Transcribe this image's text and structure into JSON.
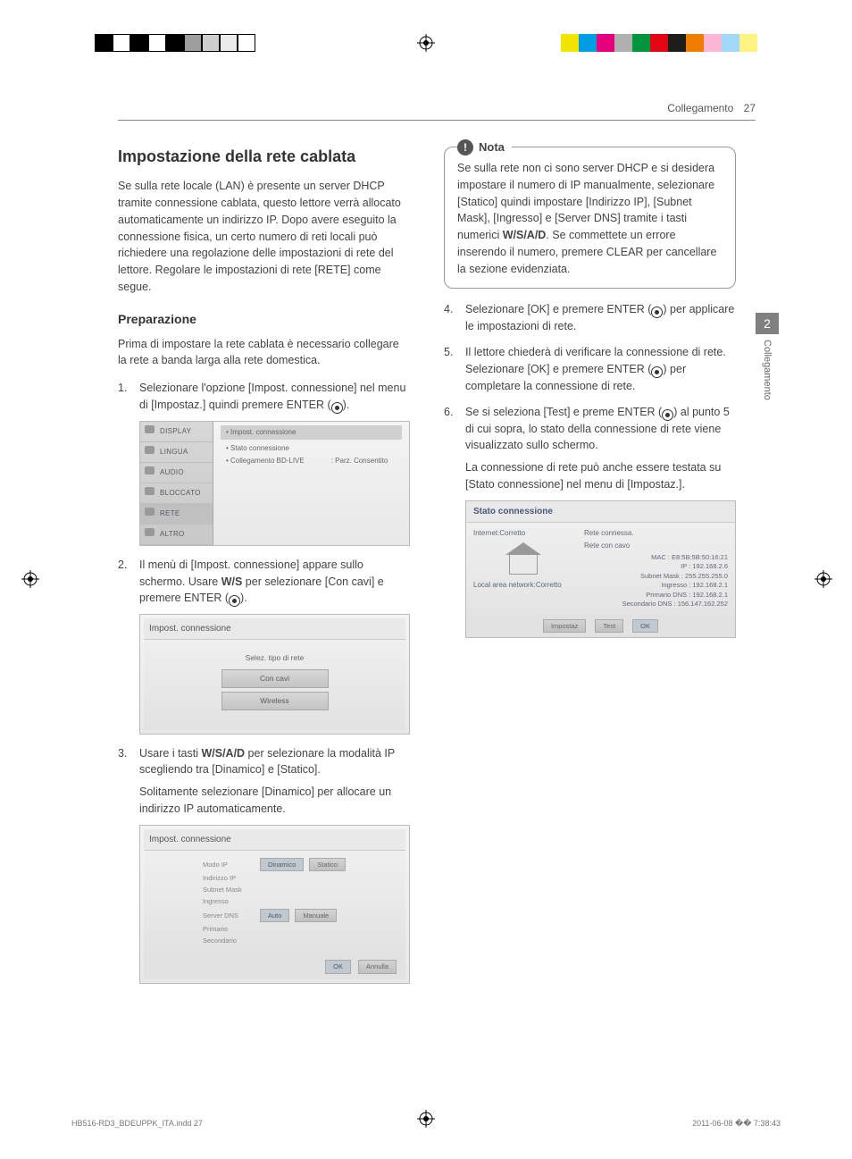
{
  "print_marks": {
    "left_bars": [
      "#000000",
      "#ffffff",
      "#000000",
      "#ffffff",
      "#000000",
      "#9e9e9e",
      "#cfcfcf",
      "#ebebeb",
      "#ffffff"
    ],
    "right_bars": [
      "#ffffff",
      "#f2e600",
      "#009fe3",
      "#e6007e",
      "#b0b0b0",
      "#009640",
      "#e30613",
      "#1d1d1b",
      "#ef7d00",
      "#fab8d5",
      "#a1daf8",
      "#fff482"
    ]
  },
  "header": {
    "section": "Collegamento",
    "page": "27"
  },
  "side_tab": {
    "num": "2",
    "label": "Collegamento"
  },
  "col_left": {
    "h2": "Impostazione della rete cablata",
    "intro": "Se sulla rete locale (LAN) è presente un server DHCP tramite connessione cablata, questo lettore verrà allocato automaticamente un indirizzo IP. Dopo avere eseguito la connessione fisica, un certo numero di reti locali può richiedere una regolazione delle impostazioni di rete del lettore. Regolare le impostazioni di rete [RETE] come segue.",
    "h3": "Preparazione",
    "prep_para": "Prima di impostare la rete cablata è necessario collegare la rete a banda larga alla rete domestica.",
    "step1_a": "Selezionare l'opzione [Impost. connessione] nel menu di [Impostaz.] quindi premere ENTER (",
    "step1_b": ").",
    "step2_a": "Il menù di [Impost. connessione] appare sullo schermo. Usare ",
    "step2_arrows": "W/S",
    "step2_b": " per selezionare [Con cavi] e premere ENTER (",
    "step2_c": ").",
    "step3_a": "Usare i tasti ",
    "step3_arrows": "W/S/A/D",
    "step3_b": " per selezionare la modalità IP scegliendo tra [Dinamico] e [Statico].",
    "step3_para2": "Solitamente selezionare [Dinamico] per allocare un indirizzo IP automaticamente.",
    "ui_menu": {
      "items": [
        "DISPLAY",
        "LINGUA",
        "AUDIO",
        "BLOCCATO",
        "RETE",
        "ALTRO"
      ],
      "hdr": "• Impost. connessione",
      "r1": "• Stato connessione",
      "r2a": "• Collegamento BD-LIVE",
      "r2b": ": Parz. Consentito"
    },
    "ui_dialog1": {
      "title": "Impost. connessione",
      "cap": "Selez. tipo di rete",
      "opt1": "Con cavi",
      "opt2": "Wireless"
    },
    "ui_dialog2": {
      "title": "Impost. connessione",
      "rows": [
        {
          "lab": "Modo IP",
          "a": "Dinamico",
          "b": "Statico"
        },
        {
          "lab": "Indirizzo IP"
        },
        {
          "lab": "Subnet Mask"
        },
        {
          "lab": "Ingresso"
        },
        {
          "lab": "Server DNS",
          "a": "Auto",
          "b": "Manuale"
        },
        {
          "lab": "Primario"
        },
        {
          "lab": "Secondario"
        }
      ],
      "ok": "OK",
      "cancel": "Annulla"
    }
  },
  "col_right": {
    "note_label": "Nota",
    "note_body_a": "Se sulla rete non ci sono server DHCP e si desidera impostare il numero di IP manualmente, selezionare [Statico] quindi impostare [Indirizzo IP], [Subnet Mask], [Ingresso] e [Server DNS] tramite i tasti numerici ",
    "note_arrows": "W/S/A/D",
    "note_body_b": ". Se commettete un errore inserendo il numero, premere CLEAR per cancellare la sezione evidenziata.",
    "step4_a": "Selezionare [OK] e premere ENTER (",
    "step4_b": ") per applicare le impostazioni di rete.",
    "step5_a": "Il lettore chiederà di verificare la connessione di rete. Selezionare [OK] e premere ENTER (",
    "step5_b": ") per completare la connessione di rete.",
    "step6_a": "Se si seleziona [Test] e preme ENTER (",
    "step6_b": ") al punto 5 di cui sopra, lo stato della connessione di rete viene visualizzato sullo schermo.",
    "step6_para2": "La connessione di rete può anche essere testata su [Stato connessione] nel menu di [Impostaz.].",
    "ui_status": {
      "title": "Stato connessione",
      "left_top": "Internet:Corretto",
      "left_bot": "Local area network:Corretto",
      "r1": "Rete connessa.",
      "r2": "Rete con cavo",
      "mac": "MAC : E8:5B:5B:50:16:21",
      "ip": "IP : 192.168.2.6",
      "mask": "Subnet Mask : 255.255.255.0",
      "gw": "Ingresso : 192.168.2.1",
      "dns1": "Primario DNS : 192.168.2.1",
      "dns2": "Secondario DNS : 156.147.162.252",
      "b1": "Impostaz",
      "b2": "Test",
      "b3": "OK"
    }
  },
  "footer": {
    "left": "HB516-RD3_BDEUPPK_ITA.indd   27",
    "right": "2011-06-08   �� 7:38:43"
  }
}
